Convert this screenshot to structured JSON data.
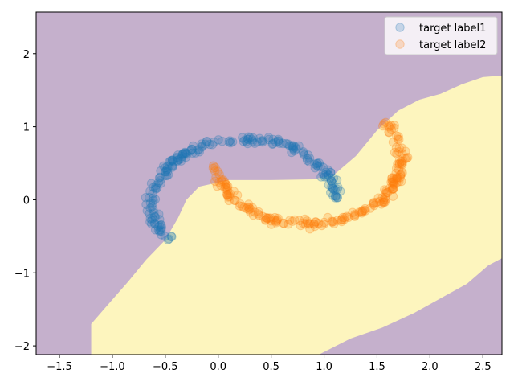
{
  "chart_data": {
    "type": "scatter",
    "title": "",
    "xlabel": "",
    "ylabel": "",
    "xlim": [
      -1.72,
      2.68
    ],
    "ylim": [
      -2.12,
      2.57
    ],
    "xticks": [
      -1.5,
      -1.0,
      -0.5,
      0.0,
      0.5,
      1.0,
      1.5,
      2.0,
      2.5
    ],
    "xtick_labels": [
      "−1.5",
      "−1.0",
      "−0.5",
      "0.0",
      "0.5",
      "1.0",
      "1.5",
      "2.0",
      "2.5"
    ],
    "yticks": [
      -2,
      -1,
      0,
      1,
      2
    ],
    "ytick_labels": [
      "−2",
      "−1",
      "0",
      "1",
      "2"
    ],
    "grid": false,
    "legend_position": "top-right",
    "background_regions": [
      {
        "class": "label1",
        "color": "#c5b0cc"
      },
      {
        "class": "label2",
        "color": "#fdf5be"
      }
    ],
    "decision_boundary": [
      [
        -1.2,
        -2.12
      ],
      [
        -1.2,
        -1.7
      ],
      [
        -1.02,
        -1.4
      ],
      [
        -0.85,
        -1.12
      ],
      [
        -0.68,
        -0.82
      ],
      [
        -0.5,
        -0.55
      ],
      [
        -0.38,
        -0.25
      ],
      [
        -0.3,
        0.0
      ],
      [
        -0.18,
        0.18
      ],
      [
        0.1,
        0.27
      ],
      [
        0.5,
        0.27
      ],
      [
        0.9,
        0.28
      ],
      [
        1.1,
        0.35
      ],
      [
        1.3,
        0.6
      ],
      [
        1.5,
        0.95
      ],
      [
        1.7,
        1.22
      ],
      [
        1.9,
        1.37
      ],
      [
        2.1,
        1.45
      ],
      [
        2.3,
        1.58
      ],
      [
        2.5,
        1.68
      ],
      [
        2.68,
        1.7
      ]
    ],
    "decision_boundary_lower": [
      [
        0.95,
        -2.12
      ],
      [
        1.25,
        -1.9
      ],
      [
        1.55,
        -1.75
      ],
      [
        1.85,
        -1.55
      ],
      [
        2.1,
        -1.35
      ],
      [
        2.35,
        -1.15
      ],
      [
        2.55,
        -0.9
      ],
      [
        2.68,
        -0.8
      ]
    ],
    "series": [
      {
        "name": "target label1",
        "color": "#1f77b4",
        "alpha": 0.22,
        "arc": {
          "cx": 0.25,
          "cy": -0.05,
          "r": 0.88,
          "theta_start_deg": 5,
          "theta_end_deg": 215,
          "n": 210
        },
        "x": [],
        "y": []
      },
      {
        "name": "target label2",
        "color": "#ff7f0e",
        "alpha": 0.22,
        "arc": {
          "cx": 0.85,
          "cy": 0.55,
          "r": 0.88,
          "theta_start_deg": 185,
          "theta_end_deg": 395,
          "n": 210
        },
        "x": [],
        "y": []
      }
    ]
  }
}
